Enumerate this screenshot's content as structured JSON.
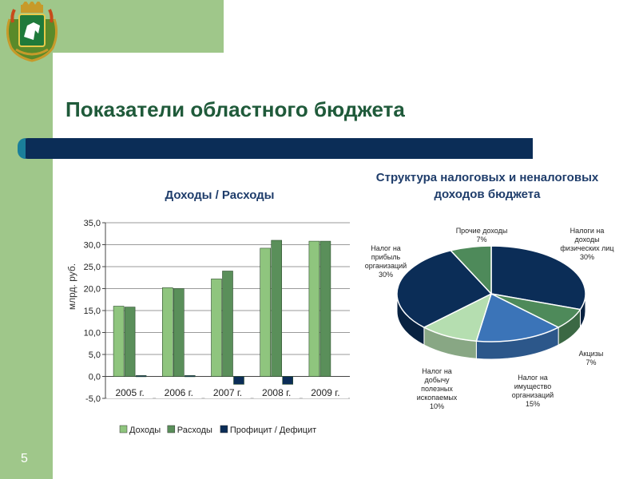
{
  "slide": {
    "title": "Показатели областного бюджета",
    "number": "5"
  },
  "chart_data": [
    {
      "type": "bar",
      "title": "Доходы / Расходы",
      "ylabel": "млрд. руб.",
      "categories": [
        "2005 г.",
        "2006 г.",
        "2007 г.",
        "2008 г.",
        "2009 г."
      ],
      "series": [
        {
          "name": "Доходы",
          "values": [
            16.0,
            20.2,
            22.2,
            29.2,
            30.8
          ],
          "color": "#8fc57e"
        },
        {
          "name": "Расходы",
          "values": [
            15.8,
            20.0,
            24.0,
            31.0,
            30.8
          ],
          "color": "#5a8f5a"
        },
        {
          "name": "Профицит / Дефицит",
          "values": [
            0.2,
            0.2,
            -1.8,
            -1.8,
            0.0
          ],
          "color": "#0b2d57"
        }
      ],
      "ylim": [
        -5,
        35
      ],
      "yticks": [
        "-5,0",
        "0,0",
        "5,0",
        "10,0",
        "15,0",
        "20,0",
        "25,0",
        "30,0",
        "35,0"
      ],
      "grid": true,
      "legend": "bottom"
    },
    {
      "type": "pie",
      "title": "Структура налоговых и неналоговых доходов бюджета",
      "slices": [
        {
          "label_lines": [
            "Налоги на",
            "доходы",
            "физических лиц",
            "30%"
          ],
          "value": 30,
          "color": "#0b2d57"
        },
        {
          "label_lines": [
            "Акцизы",
            "7%"
          ],
          "value": 7,
          "color": "#4e8a5a"
        },
        {
          "label_lines": [
            "Налог на",
            "имущество",
            "организаций",
            "15%"
          ],
          "value": 15,
          "color": "#3b74b8"
        },
        {
          "label_lines": [
            "Налог на",
            "добычу",
            "полезных",
            "ископаемых",
            "10%"
          ],
          "value": 10,
          "color": "#b5deb0"
        },
        {
          "label_lines": [
            "Налог на",
            "прибыль",
            "организаций",
            "30%"
          ],
          "value": 30,
          "color": "#0b2d57"
        },
        {
          "label_lines": [
            "Прочие доходы",
            "7%"
          ],
          "value": 7,
          "color": "#4e8a5a"
        }
      ]
    }
  ]
}
